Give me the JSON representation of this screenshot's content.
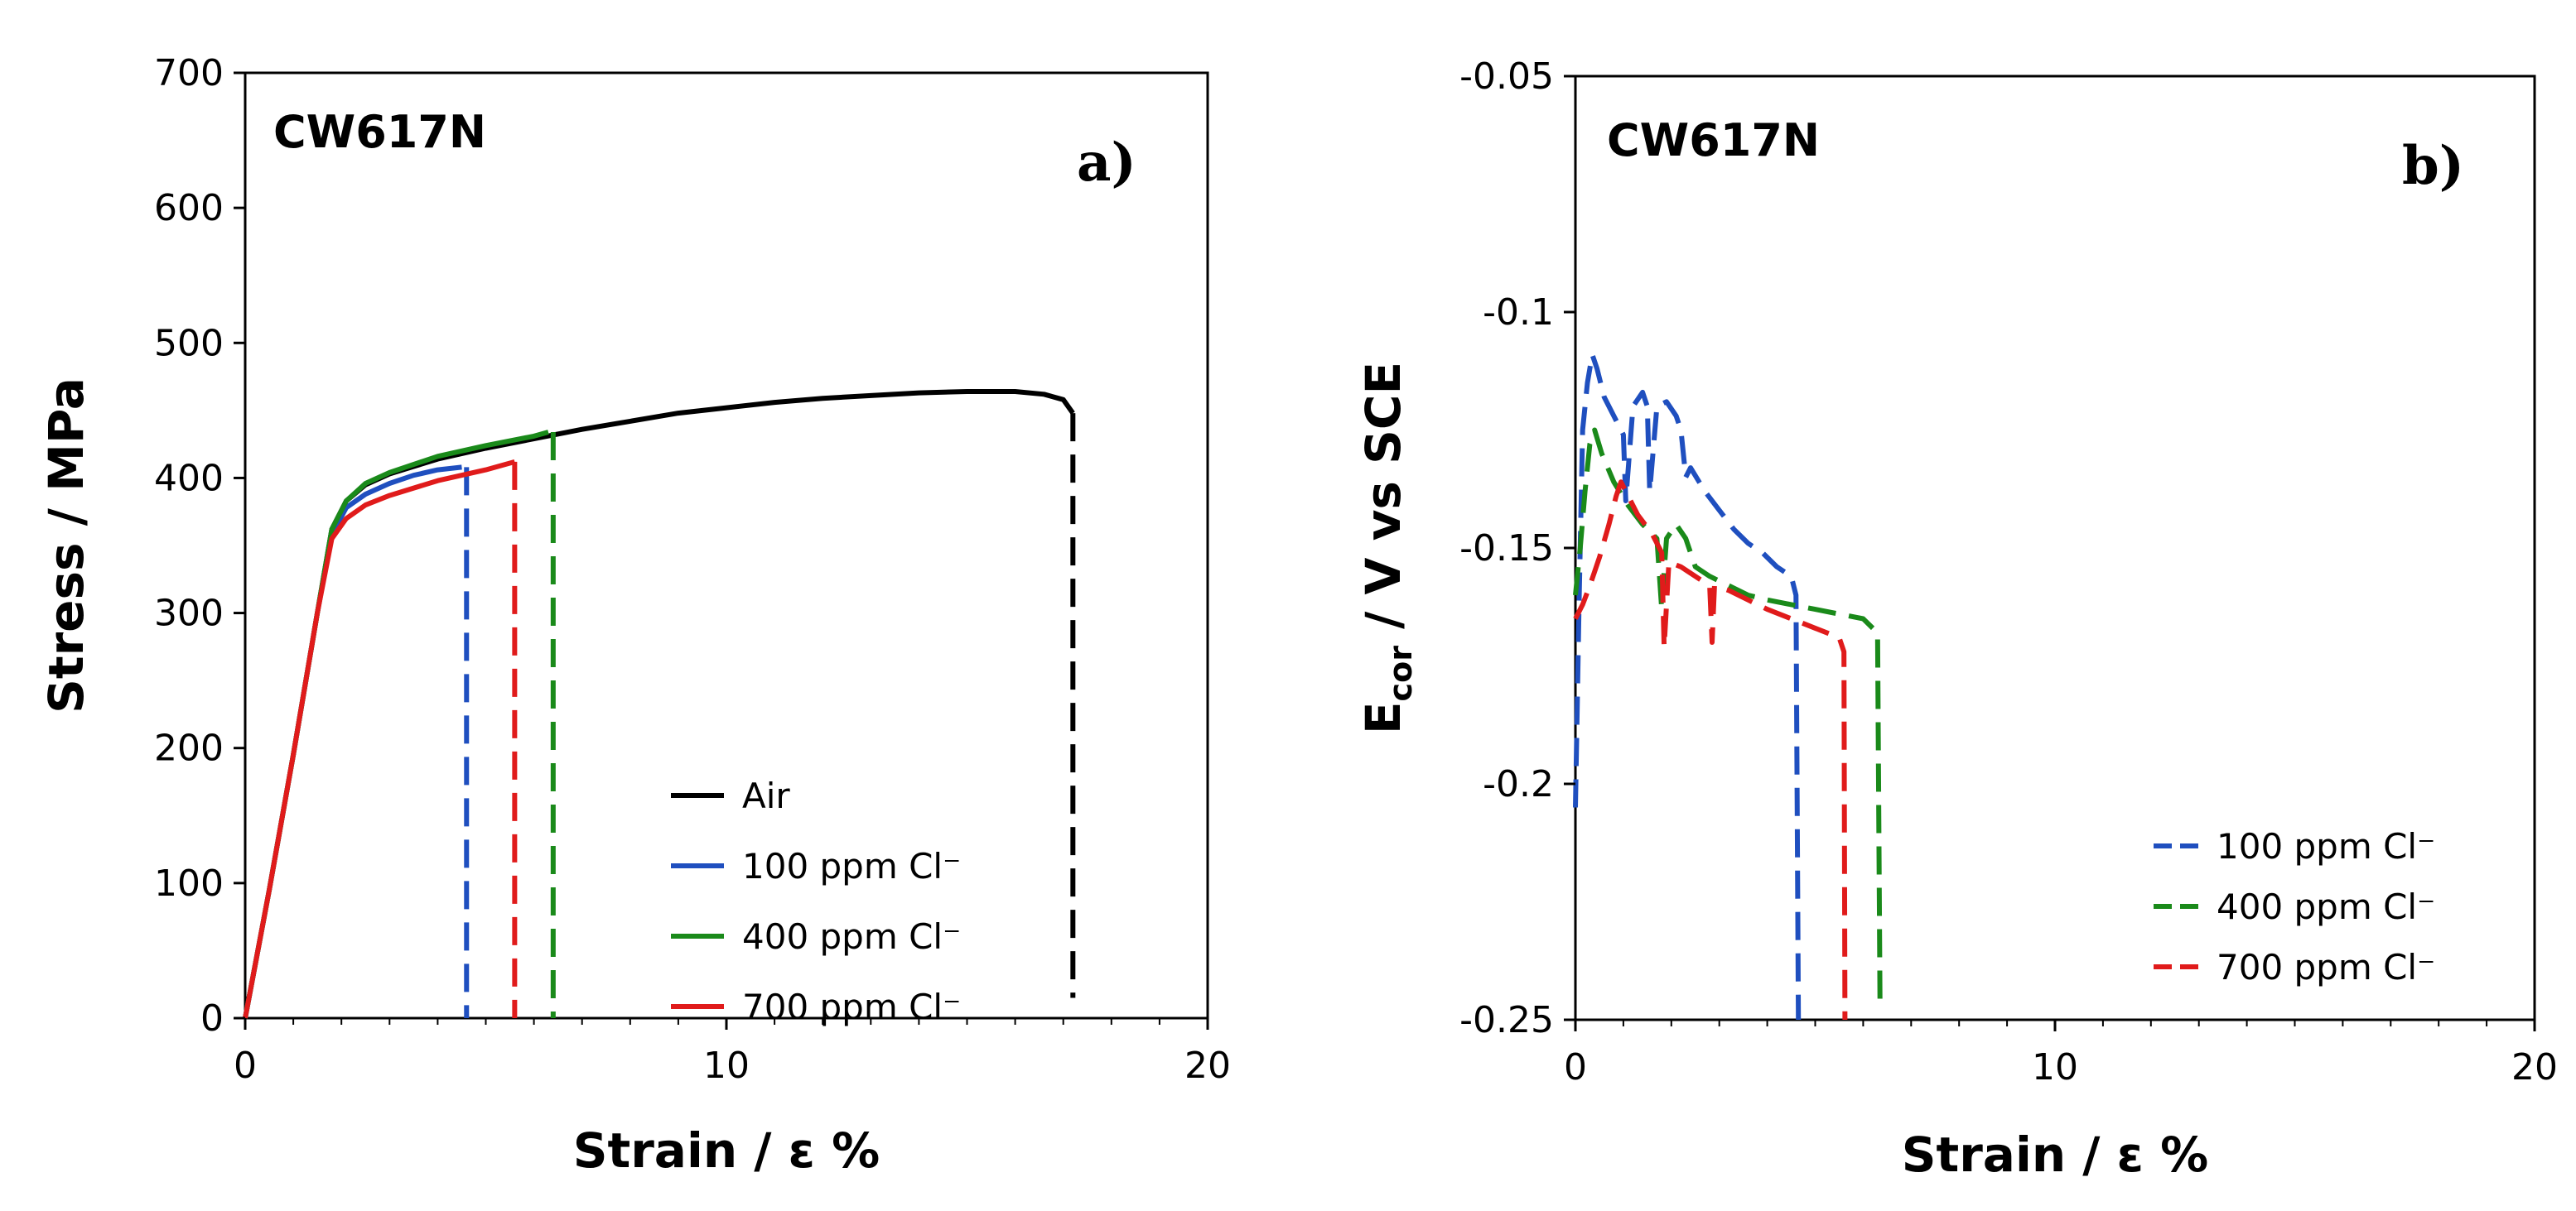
{
  "chart_data": [
    {
      "type": "line",
      "panel_label": "a)",
      "title": "CW617N",
      "xlabel": "Strain / ε %",
      "ylabel": "Stress / MPa",
      "xlim": [
        0,
        20
      ],
      "ylim": [
        0,
        700
      ],
      "xticks": [
        "0",
        "10",
        "20"
      ],
      "yticks": [
        "0",
        "100",
        "200",
        "300",
        "400",
        "500",
        "600",
        "700"
      ],
      "legend_position": "bottom-right",
      "series": [
        {
          "name": "Air",
          "color": "#000000",
          "style": "solid",
          "x": [
            0,
            0.5,
            1.0,
            1.5,
            1.8,
            2.1,
            2.5,
            3,
            4,
            5,
            6,
            7,
            8,
            9,
            10,
            11,
            12,
            13,
            14,
            15,
            16,
            16.6,
            17.0,
            17.2
          ],
          "y": [
            0,
            95,
            195,
            300,
            362,
            383,
            395,
            403,
            414,
            422,
            429,
            436,
            442,
            448,
            452,
            456,
            459,
            461,
            463,
            464,
            464,
            462,
            458,
            448
          ],
          "fracture": {
            "x": 17.2,
            "y_from": 448,
            "y_to": 15
          }
        },
        {
          "name": "100 ppm Cl⁻",
          "color": "#1f4fbf",
          "style": "solid",
          "x": [
            0,
            0.5,
            1.0,
            1.5,
            1.8,
            2.1,
            2.5,
            3,
            3.5,
            4.0,
            4.5
          ],
          "y": [
            0,
            95,
            195,
            300,
            358,
            378,
            388,
            396,
            402,
            406,
            408
          ],
          "fracture": {
            "x": 4.6,
            "y_from": 408,
            "y_to": 0
          }
        },
        {
          "name": "400 ppm Cl⁻",
          "color": "#1a8a1a",
          "style": "solid",
          "x": [
            0,
            0.5,
            1.0,
            1.5,
            1.8,
            2.1,
            2.5,
            3,
            4,
            5,
            6,
            6.3
          ],
          "y": [
            0,
            95,
            195,
            300,
            362,
            383,
            396,
            404,
            416,
            424,
            431,
            434
          ],
          "fracture": {
            "x": 6.4,
            "y_from": 434,
            "y_to": 0
          }
        },
        {
          "name": "700 ppm Cl⁻",
          "color": "#e01b1b",
          "style": "solid",
          "x": [
            0,
            0.5,
            1.0,
            1.5,
            1.8,
            2.1,
            2.5,
            3,
            4,
            5,
            5.6
          ],
          "y": [
            0,
            95,
            195,
            300,
            355,
            370,
            380,
            387,
            398,
            406,
            412
          ],
          "fracture": {
            "x": 5.6,
            "y_from": 412,
            "y_to": 0
          }
        }
      ]
    },
    {
      "type": "line",
      "panel_label": "b)",
      "title": "CW617N",
      "xlabel": "Strain / ε %",
      "ylabel_main": "E",
      "ylabel_sub": "cor",
      "ylabel_rest": " / V vs SCE",
      "xlim": [
        0,
        20
      ],
      "ylim": [
        -0.25,
        -0.05
      ],
      "xticks": [
        "0",
        "10",
        "20"
      ],
      "yticks": [
        "-0.25",
        "-0.2",
        "-0.15",
        "-0.1",
        "-0.05"
      ],
      "legend_position": "bottom-right",
      "series": [
        {
          "name": "100 ppm Cl⁻",
          "color": "#1f4fbf",
          "style": "dash",
          "x": [
            0.0,
            0.08,
            0.15,
            0.25,
            0.35,
            0.45,
            0.6,
            0.8,
            1.0,
            1.05,
            1.2,
            1.4,
            1.5,
            1.55,
            1.7,
            1.9,
            2.1,
            2.2,
            2.3,
            2.4,
            2.7,
            3.0,
            3.3,
            3.6,
            3.9,
            4.2,
            4.5,
            4.6,
            4.65
          ],
          "y": [
            -0.205,
            -0.16,
            -0.125,
            -0.115,
            -0.109,
            -0.112,
            -0.118,
            -0.122,
            -0.126,
            -0.14,
            -0.12,
            -0.117,
            -0.12,
            -0.138,
            -0.12,
            -0.119,
            -0.122,
            -0.125,
            -0.135,
            -0.133,
            -0.138,
            -0.142,
            -0.146,
            -0.149,
            -0.151,
            -0.154,
            -0.156,
            -0.16,
            -0.25
          ]
        },
        {
          "name": "400 ppm Cl⁻",
          "color": "#1a8a1a",
          "style": "dash",
          "x": [
            0.0,
            0.1,
            0.2,
            0.3,
            0.4,
            0.55,
            0.8,
            1.1,
            1.4,
            1.7,
            1.8,
            1.85,
            1.9,
            2.1,
            2.3,
            2.5,
            2.8,
            3.2,
            3.6,
            4.0,
            4.5,
            5.0,
            5.5,
            6.0,
            6.3,
            6.35
          ],
          "y": [
            -0.16,
            -0.15,
            -0.138,
            -0.128,
            -0.125,
            -0.13,
            -0.136,
            -0.141,
            -0.145,
            -0.148,
            -0.163,
            -0.155,
            -0.148,
            -0.145,
            -0.148,
            -0.154,
            -0.156,
            -0.158,
            -0.16,
            -0.161,
            -0.162,
            -0.163,
            -0.164,
            -0.165,
            -0.168,
            -0.246
          ]
        },
        {
          "name": "700 ppm Cl⁻",
          "color": "#e01b1b",
          "style": "dash",
          "x": [
            0.0,
            0.15,
            0.3,
            0.5,
            0.7,
            0.85,
            0.95,
            1.1,
            1.3,
            1.6,
            1.8,
            1.85,
            1.95,
            2.2,
            2.5,
            2.8,
            2.85,
            2.9,
            3.2,
            3.6,
            4.0,
            4.5,
            5.0,
            5.5,
            5.6,
            5.62
          ],
          "y": [
            -0.165,
            -0.162,
            -0.158,
            -0.152,
            -0.145,
            -0.139,
            -0.136,
            -0.139,
            -0.143,
            -0.147,
            -0.151,
            -0.171,
            -0.153,
            -0.154,
            -0.156,
            -0.158,
            -0.17,
            -0.158,
            -0.159,
            -0.161,
            -0.163,
            -0.165,
            -0.167,
            -0.169,
            -0.172,
            -0.25
          ]
        }
      ]
    }
  ],
  "legend_colors": {
    "Air": "#000000",
    "100 ppm Cl⁻": "#1f4fbf",
    "400 ppm Cl⁻": "#1a8a1a",
    "700 ppm Cl⁻": "#e01b1b"
  }
}
